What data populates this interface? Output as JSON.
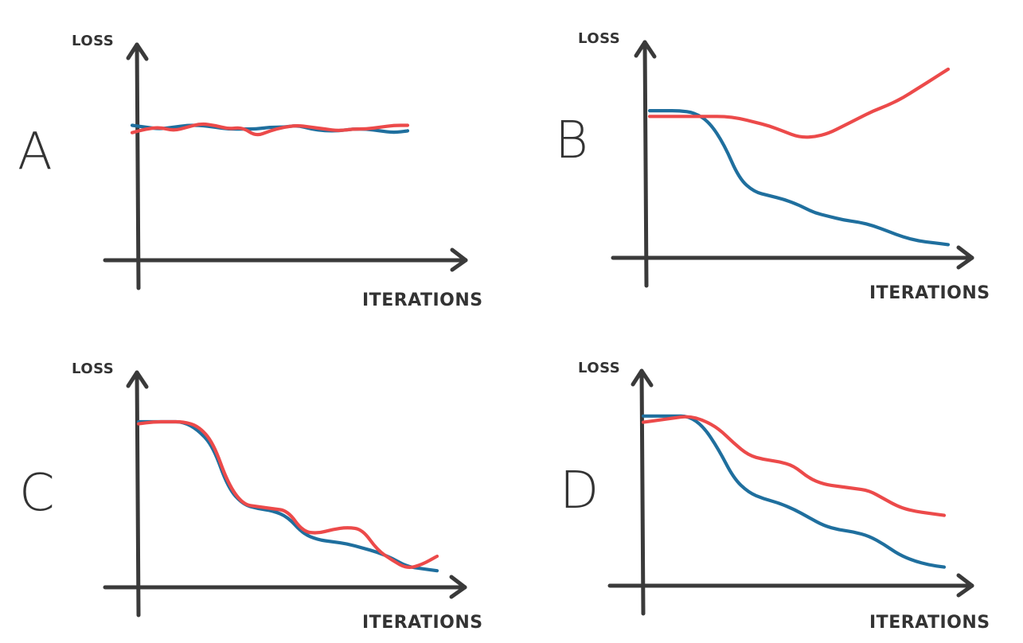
{
  "chart_data": [
    {
      "type": "line",
      "panel_label": "A",
      "xlabel": "ITERATIONS",
      "ylabel": "LOSS",
      "xlim": [
        0,
        100
      ],
      "ylim": [
        0,
        100
      ],
      "grid": false,
      "series": [
        {
          "color": "#1f6f9e",
          "x": [
            0,
            5,
            10,
            15,
            20,
            25,
            30,
            35,
            40,
            45,
            50,
            55,
            60,
            65,
            70,
            75,
            80,
            85,
            90,
            95,
            100
          ],
          "y": [
            74,
            73,
            72,
            73,
            74,
            74,
            73,
            72,
            72,
            72,
            73,
            73,
            74,
            72,
            71,
            71,
            72,
            72,
            71,
            70,
            71
          ]
        },
        {
          "color": "#ec4a4a",
          "x": [
            0,
            5,
            10,
            15,
            20,
            25,
            30,
            35,
            40,
            45,
            50,
            55,
            60,
            65,
            70,
            75,
            80,
            85,
            90,
            95,
            100
          ],
          "y": [
            70,
            72,
            73,
            71,
            73,
            75,
            74,
            72,
            73,
            68,
            71,
            73,
            74,
            73,
            72,
            71,
            72,
            72,
            73,
            74,
            74
          ]
        }
      ]
    },
    {
      "type": "line",
      "panel_label": "B",
      "xlabel": "ITERATIONS",
      "ylabel": "LOSS",
      "xlim": [
        0,
        100
      ],
      "ylim": [
        0,
        100
      ],
      "grid": false,
      "series": [
        {
          "color": "#1f6f9e",
          "x": [
            0,
            5,
            10,
            15,
            20,
            25,
            30,
            35,
            40,
            45,
            50,
            55,
            60,
            65,
            70,
            75,
            80,
            85,
            90,
            95,
            100
          ],
          "y": [
            78,
            78,
            78,
            77,
            72,
            60,
            42,
            35,
            33,
            31,
            28,
            24,
            22,
            20,
            19,
            17,
            14,
            11,
            9,
            8,
            7
          ]
        },
        {
          "color": "#ec4a4a",
          "x": [
            0,
            5,
            10,
            15,
            20,
            25,
            30,
            35,
            40,
            45,
            50,
            55,
            60,
            65,
            70,
            75,
            80,
            85,
            90,
            95,
            100
          ],
          "y": [
            75,
            75,
            75,
            75,
            75,
            75,
            74,
            72,
            70,
            67,
            64,
            64,
            66,
            70,
            74,
            78,
            81,
            85,
            90,
            95,
            100
          ]
        }
      ]
    },
    {
      "type": "line",
      "panel_label": "C",
      "xlabel": "ITERATIONS",
      "ylabel": "LOSS",
      "xlim": [
        0,
        100
      ],
      "ylim": [
        0,
        100
      ],
      "grid": false,
      "series": [
        {
          "color": "#1f6f9e",
          "x": [
            0,
            5,
            10,
            15,
            20,
            25,
            30,
            35,
            40,
            45,
            50,
            55,
            60,
            65,
            70,
            75,
            80,
            85,
            90,
            95,
            100
          ],
          "y": [
            80,
            80,
            80,
            80,
            76,
            68,
            48,
            40,
            38,
            37,
            34,
            26,
            23,
            22,
            21,
            19,
            17,
            14,
            10,
            9,
            8
          ]
        },
        {
          "color": "#ec4a4a",
          "x": [
            0,
            5,
            10,
            15,
            20,
            25,
            30,
            35,
            40,
            45,
            50,
            55,
            60,
            65,
            70,
            75,
            80,
            85,
            90,
            95,
            100
          ],
          "y": [
            79,
            80,
            80,
            80,
            78,
            70,
            50,
            40,
            39,
            38,
            37,
            27,
            26,
            28,
            29,
            28,
            18,
            13,
            9,
            11,
            15
          ]
        }
      ]
    },
    {
      "type": "line",
      "panel_label": "D",
      "xlabel": "ITERATIONS",
      "ylabel": "LOSS",
      "xlim": [
        0,
        100
      ],
      "ylim": [
        0,
        100
      ],
      "grid": false,
      "series": [
        {
          "color": "#1f6f9e",
          "x": [
            0,
            5,
            10,
            15,
            20,
            25,
            30,
            35,
            40,
            45,
            50,
            55,
            60,
            65,
            70,
            75,
            80,
            85,
            90,
            95,
            100
          ],
          "y": [
            82,
            82,
            82,
            82,
            77,
            66,
            52,
            45,
            42,
            40,
            37,
            33,
            29,
            27,
            26,
            24,
            20,
            15,
            12,
            10,
            9
          ]
        },
        {
          "color": "#ec4a4a",
          "x": [
            0,
            5,
            10,
            15,
            20,
            25,
            30,
            35,
            40,
            45,
            50,
            55,
            60,
            65,
            70,
            75,
            80,
            85,
            90,
            95,
            100
          ],
          "y": [
            79,
            80,
            81,
            82,
            80,
            76,
            69,
            63,
            61,
            60,
            58,
            52,
            49,
            48,
            47,
            46,
            42,
            38,
            36,
            35,
            34
          ]
        }
      ]
    }
  ]
}
